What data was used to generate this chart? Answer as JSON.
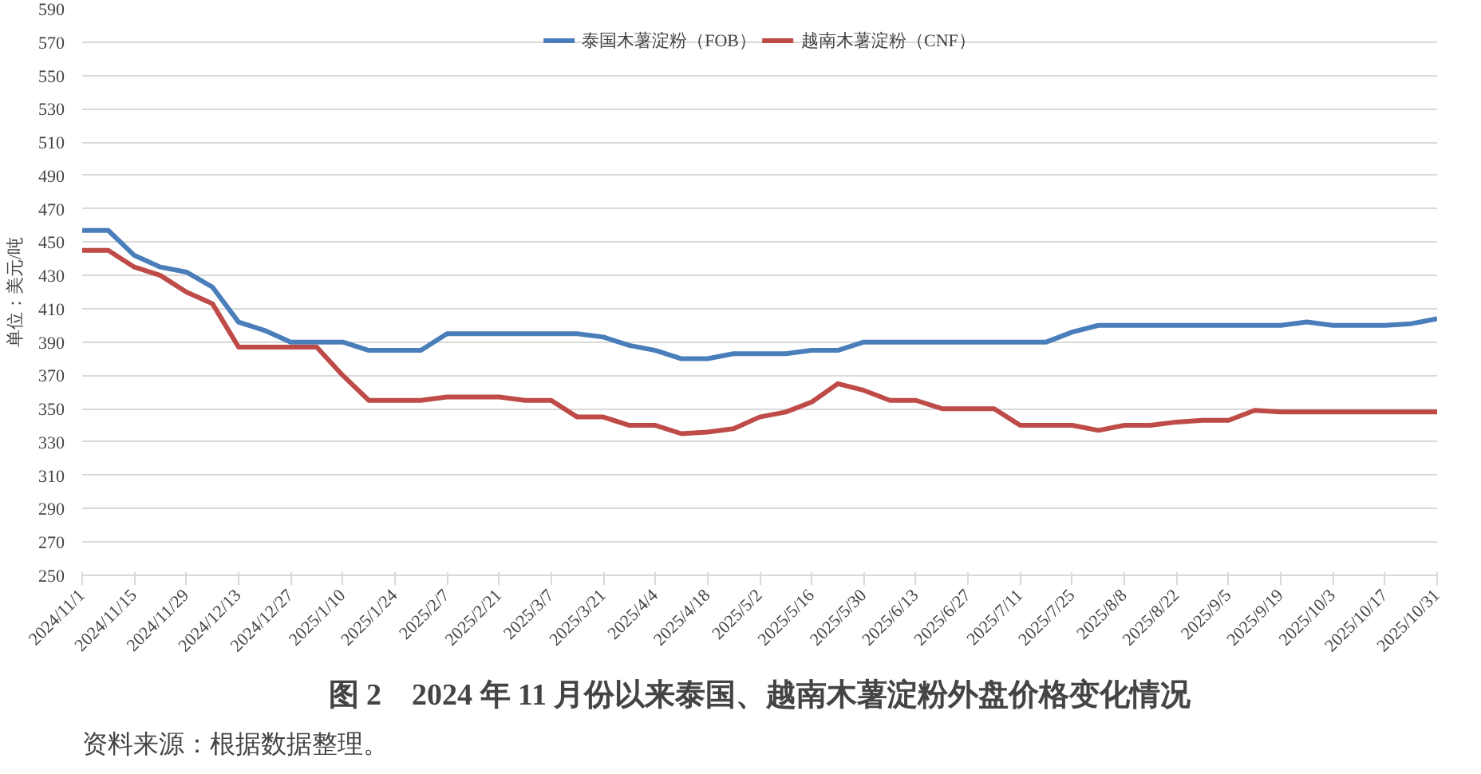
{
  "chart_data": {
    "type": "line",
    "title": "图 2　2024 年 11 月份以来泰国、越南木薯淀粉外盘价格变化情况",
    "ylabel": "单位：美元/吨",
    "categories": [
      "2024/11/1",
      null,
      "2024/11/15",
      null,
      "2024/11/29",
      null,
      "2024/12/13",
      null,
      "2024/12/27",
      null,
      "2025/1/10",
      null,
      "2025/1/24",
      null,
      "2025/2/7",
      null,
      "2025/2/21",
      null,
      "2025/3/7",
      null,
      "2025/3/21",
      null,
      "2025/4/4",
      null,
      "2025/4/18",
      null,
      "2025/5/2",
      null,
      "2025/5/16",
      null,
      "2025/5/30",
      null,
      "2025/6/13",
      null,
      "2025/6/27",
      null,
      "2025/7/11",
      null,
      "2025/7/25",
      null,
      "2025/8/8",
      null,
      "2025/8/22",
      null,
      "2025/9/5",
      null,
      "2025/9/19",
      null,
      "2025/10/3",
      null,
      "2025/10/17",
      null,
      "2025/10/31"
    ],
    "series": [
      {
        "name": "泰国木薯淀粉（FOB）",
        "color": "#4a7ebb",
        "values": [
          457,
          457,
          442,
          435,
          432,
          423,
          402,
          397,
          390,
          390,
          390,
          385,
          385,
          385,
          395,
          395,
          395,
          395,
          395,
          395,
          393,
          388,
          385,
          380,
          380,
          383,
          383,
          383,
          385,
          385,
          390,
          390,
          390,
          390,
          390,
          390,
          390,
          390,
          396,
          400,
          400,
          400,
          400,
          400,
          400,
          400,
          400,
          402,
          400,
          400,
          400,
          401,
          404
        ]
      },
      {
        "name": "越南木薯淀粉（CNF）",
        "color": "#be4b48",
        "values": [
          445,
          445,
          435,
          430,
          420,
          413,
          387,
          387,
          387,
          387,
          370,
          355,
          355,
          355,
          357,
          357,
          357,
          355,
          355,
          345,
          345,
          340,
          340,
          335,
          336,
          338,
          345,
          348,
          354,
          365,
          361,
          355,
          355,
          350,
          350,
          350,
          340,
          340,
          340,
          337,
          340,
          340,
          342,
          343,
          343,
          349,
          348,
          348,
          348,
          348,
          348,
          348,
          348
        ]
      }
    ],
    "ylim": [
      250,
      590
    ],
    "yticks": [
      250,
      270,
      290,
      310,
      330,
      350,
      370,
      390,
      410,
      430,
      450,
      470,
      490,
      510,
      530,
      550,
      570,
      590
    ],
    "grid": "y",
    "legend": "top",
    "marker": "none",
    "line_style": "solid",
    "annotations": [
      "资料来源：根据数据整理。"
    ]
  }
}
